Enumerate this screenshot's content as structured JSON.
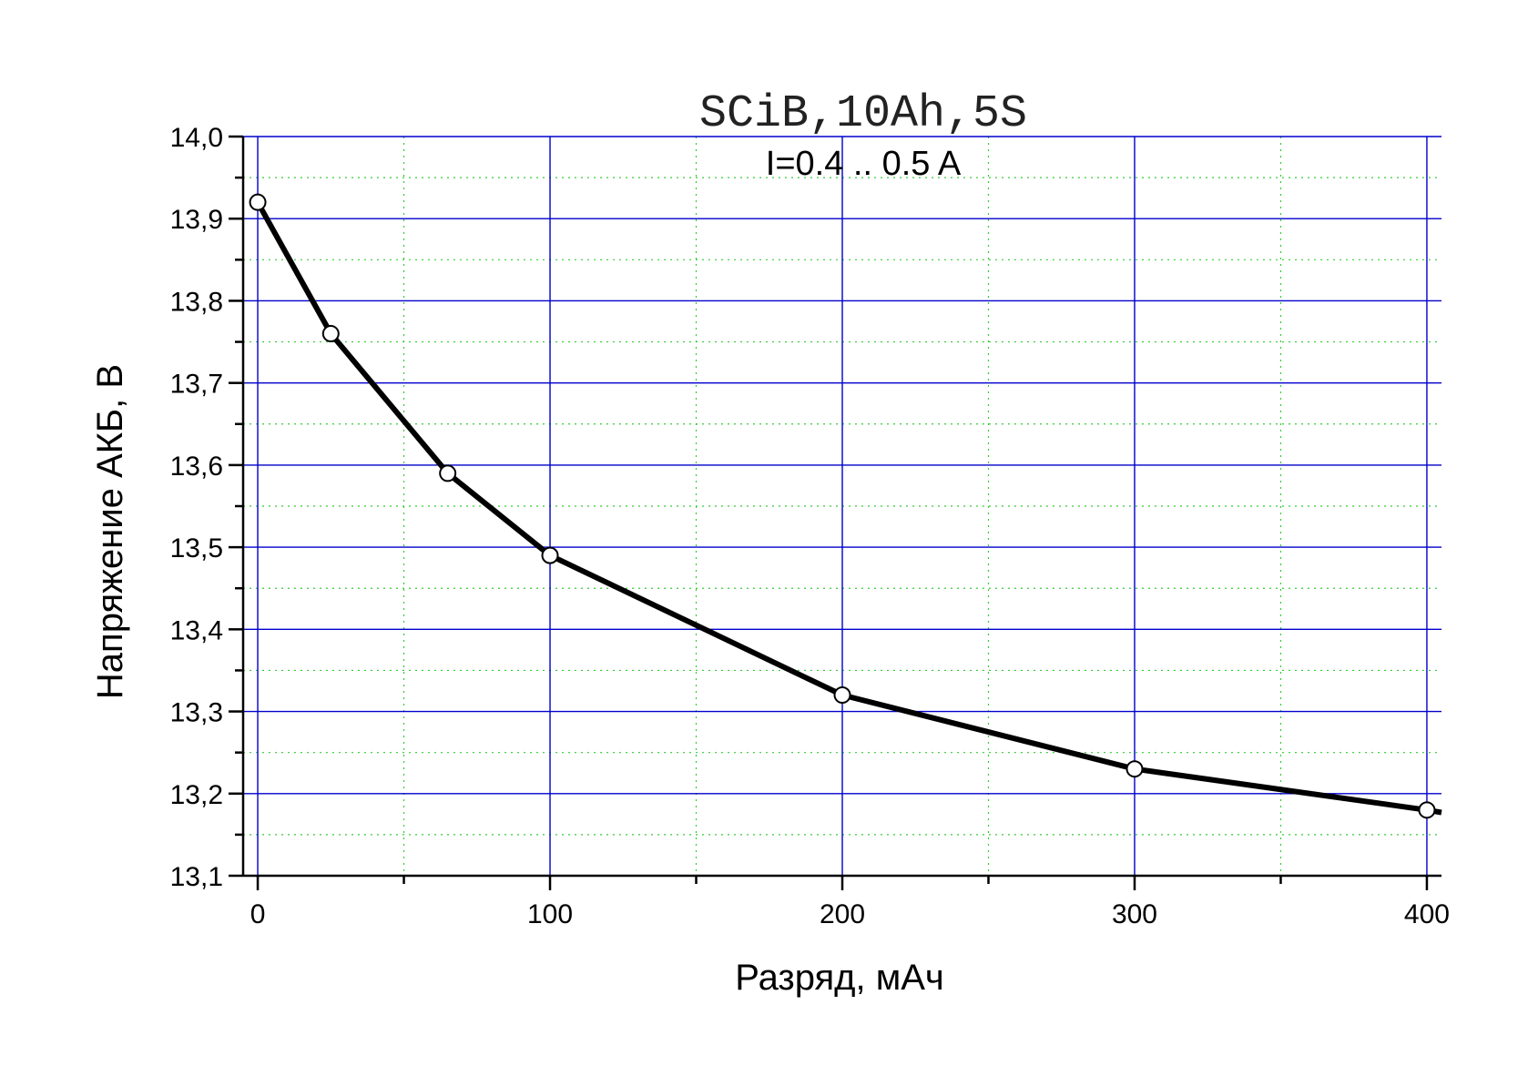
{
  "chart_data": {
    "type": "line",
    "title": "SCiB,10Ah,5S",
    "subtitle": "I=0.4 .. 0.5 A",
    "xlabel": "Разряд, мАч",
    "ylabel": "Напряжение АКБ, В",
    "xlim": [
      -5,
      405
    ],
    "ylim": [
      13.1,
      14.0
    ],
    "x_ticks": [
      0,
      100,
      200,
      300,
      400
    ],
    "x_tick_labels": [
      "0",
      "100",
      "200",
      "300",
      "400"
    ],
    "y_ticks": [
      13.1,
      13.2,
      13.3,
      13.4,
      13.5,
      13.6,
      13.7,
      13.8,
      13.9,
      14.0
    ],
    "y_tick_labels": [
      "13,1",
      "13,2",
      "13,3",
      "13,4",
      "13,5",
      "13,6",
      "13,7",
      "13,8",
      "13,9",
      "14,0"
    ],
    "grid": true,
    "legend": "none",
    "series": [
      {
        "x": [
          0,
          25,
          65,
          100,
          200,
          300,
          400,
          405
        ],
        "y": [
          13.92,
          13.76,
          13.59,
          13.49,
          13.32,
          13.23,
          13.18,
          13.177
        ],
        "markers": [
          0,
          1,
          2,
          3,
          4,
          5,
          6
        ]
      }
    ],
    "colors": {
      "line": "#000000",
      "marker_fill": "#ffffff",
      "major_grid": "#0000cc",
      "minor_grid": "#33cc33",
      "axis": "#000000"
    }
  }
}
